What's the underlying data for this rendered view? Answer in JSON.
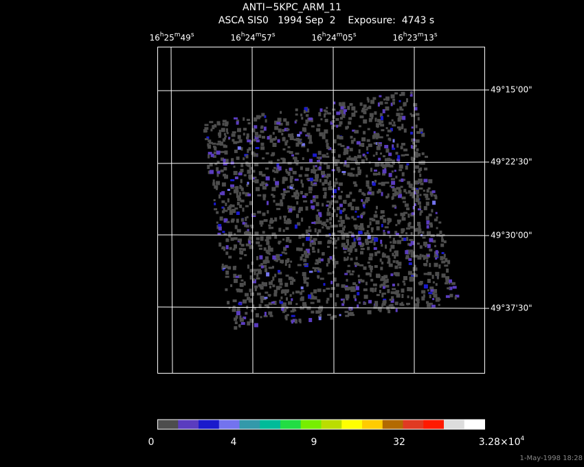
{
  "header": {
    "title": "ANTI−5KPC_ARM_11",
    "subtitle": "ASCA SIS0   1994 Sep  2    Exposure:  4743 s"
  },
  "ra_labels": [
    [
      "16",
      "h",
      "25",
      "m",
      "49",
      "s"
    ],
    [
      "16",
      "h",
      "24",
      "m",
      "57",
      "s"
    ],
    [
      "16",
      "h",
      "24",
      "m",
      "05",
      "s"
    ],
    [
      "16",
      "h",
      "23",
      "m",
      "13",
      "s"
    ]
  ],
  "dec_labels": [
    "49°15'00\"",
    "49°22'30\"",
    "49°30'00\"",
    "49°37'30\""
  ],
  "colorbar": {
    "colors": [
      "#4d4d4d",
      "#5a3cbf",
      "#1a1acc",
      "#7373ee",
      "#3399aa",
      "#00bb99",
      "#22dd44",
      "#77ee00",
      "#bbdd00",
      "#ffff00",
      "#ffcc00",
      "#b36a00",
      "#e03a22",
      "#ff1a00",
      "#dddddd",
      "#ffffff"
    ],
    "labels": [
      "0",
      "4",
      "9",
      "32",
      {
        "mantissa": "3.28×10",
        "exponent": "4"
      }
    ]
  },
  "timestamp": "1-May-1998 18:28"
}
